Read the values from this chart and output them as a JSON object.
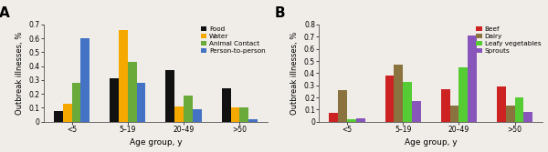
{
  "panel_A": {
    "categories": [
      "<5",
      "5–19",
      "20–49",
      ">50"
    ],
    "series_order": [
      "Food",
      "Water",
      "Animal Contact",
      "Person-to-person"
    ],
    "series": {
      "Food": [
        0.08,
        0.31,
        0.37,
        0.24
      ],
      "Water": [
        0.13,
        0.66,
        0.11,
        0.1
      ],
      "Animal Contact": [
        0.28,
        0.43,
        0.19,
        0.1
      ],
      "Person-to-person": [
        0.6,
        0.28,
        0.09,
        0.02
      ]
    },
    "colors": {
      "Food": "#111111",
      "Water": "#f5a800",
      "Animal Contact": "#6aaa3a",
      "Person-to-person": "#4472c4"
    },
    "ylabel": "Outbreak illnesses, %",
    "xlabel": "Age group, y",
    "ylim": [
      0,
      0.7
    ],
    "yticks": [
      0.0,
      0.1,
      0.2,
      0.3,
      0.4,
      0.5,
      0.6,
      0.7
    ],
    "ytick_labels": [
      "0",
      "0.1",
      "0.2",
      "0.3",
      "0.4",
      "0.5",
      "0.6",
      "0.7"
    ],
    "label": "A"
  },
  "panel_B": {
    "categories": [
      "<5",
      "5–19",
      "20–49",
      ">50"
    ],
    "series_order": [
      "Beef",
      "Dairy",
      "Leafy vegetables",
      "Sprouts"
    ],
    "series": {
      "Beef": [
        0.07,
        0.38,
        0.27,
        0.29
      ],
      "Dairy": [
        0.26,
        0.47,
        0.13,
        0.13
      ],
      "Leafy vegetables": [
        0.02,
        0.33,
        0.45,
        0.2
      ],
      "Sprouts": [
        0.03,
        0.17,
        0.71,
        0.08
      ]
    },
    "colors": {
      "Beef": "#cc2222",
      "Dairy": "#8b7340",
      "Leafy vegetables": "#55cc33",
      "Sprouts": "#8855bb"
    },
    "ylabel": "Outbreak illnesses, %",
    "xlabel": "Age group, y",
    "ylim": [
      0,
      0.8
    ],
    "yticks": [
      0.0,
      0.1,
      0.2,
      0.3,
      0.4,
      0.5,
      0.6,
      0.7,
      0.8
    ],
    "ytick_labels": [
      "0",
      "0.1",
      "0.2",
      "0.3",
      "0.4",
      "0.5",
      "0.6",
      "0.7",
      "0.8"
    ],
    "label": "B"
  },
  "figsize": [
    6.0,
    1.67
  ],
  "dpi": 100,
  "bg_color": "#f0ede8"
}
